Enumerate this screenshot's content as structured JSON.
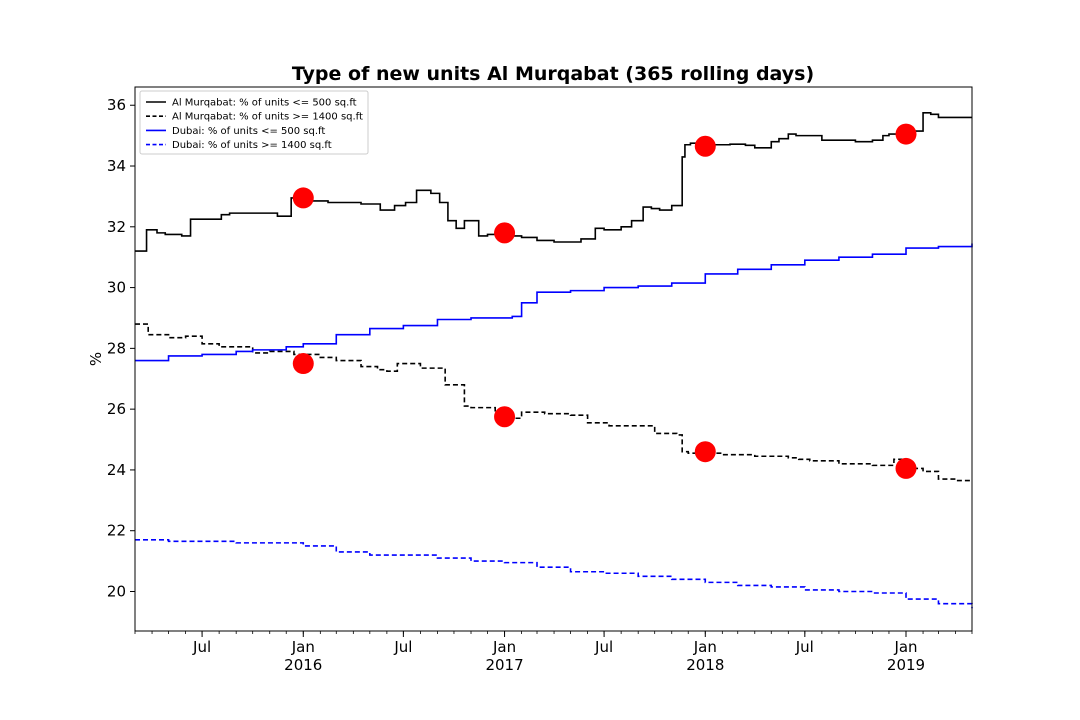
{
  "chart_data": {
    "type": "line",
    "title": "Type of new units Al Murqabat (365 rolling days)",
    "xlabel": "",
    "ylabel": "%",
    "xlim": [
      "2015-03-01",
      "2019-05-01"
    ],
    "ylim": [
      18.7,
      36.6
    ],
    "y_ticks": [
      20,
      22,
      24,
      26,
      28,
      30,
      32,
      34,
      36
    ],
    "x_ticks": [
      {
        "date": "2015-07-01",
        "label": "Jul",
        "year": ""
      },
      {
        "date": "2016-01-01",
        "label": "Jan",
        "year": "2016"
      },
      {
        "date": "2016-07-01",
        "label": "Jul",
        "year": ""
      },
      {
        "date": "2017-01-01",
        "label": "Jan",
        "year": "2017"
      },
      {
        "date": "2017-07-01",
        "label": "Jul",
        "year": ""
      },
      {
        "date": "2018-01-01",
        "label": "Jan",
        "year": "2018"
      },
      {
        "date": "2018-07-01",
        "label": "Jul",
        "year": ""
      },
      {
        "date": "2019-01-01",
        "label": "Jan",
        "year": "2019"
      }
    ],
    "legend_position": "top-left",
    "grid": false,
    "series": [
      {
        "name": "Al Murqabat: % of units <= 500 sq.ft",
        "color": "#000000",
        "style": "solid",
        "x": [
          "2015-03-01",
          "2015-03-20",
          "2015-03-22",
          "2015-04-10",
          "2015-04-25",
          "2015-05-25",
          "2015-06-10",
          "2015-07-15",
          "2015-08-05",
          "2015-08-20",
          "2015-10-01",
          "2015-11-15",
          "2015-12-01",
          "2015-12-10",
          "2015-12-25",
          "2016-01-15",
          "2016-02-15",
          "2016-03-15",
          "2016-04-15",
          "2016-05-15",
          "2016-05-20",
          "2016-06-15",
          "2016-07-05",
          "2016-07-25",
          "2016-08-20",
          "2016-09-05",
          "2016-09-20",
          "2016-10-05",
          "2016-10-20",
          "2016-11-01",
          "2016-11-15",
          "2016-12-01",
          "2016-12-15",
          "2017-01-01",
          "2017-02-01",
          "2017-03-01",
          "2017-04-01",
          "2017-04-20",
          "2017-05-20",
          "2017-06-15",
          "2017-07-01",
          "2017-08-01",
          "2017-08-20",
          "2017-09-10",
          "2017-09-25",
          "2017-10-10",
          "2017-11-01",
          "2017-11-20",
          "2017-11-25",
          "2017-12-05",
          "2017-12-20",
          "2018-01-01",
          "2018-02-15",
          "2018-03-15",
          "2018-04-01",
          "2018-05-01",
          "2018-05-15",
          "2018-06-01",
          "2018-06-15",
          "2018-07-01",
          "2018-08-01",
          "2018-09-15",
          "2018-10-01",
          "2018-11-01",
          "2018-11-20",
          "2018-12-01",
          "2018-12-15",
          "2019-01-01",
          "2019-01-15",
          "2019-02-01",
          "2019-02-15",
          "2019-03-01",
          "2019-04-01",
          "2019-05-01"
        ],
        "y": [
          31.2,
          31.2,
          31.9,
          31.8,
          31.75,
          31.7,
          32.25,
          32.25,
          32.4,
          32.45,
          32.45,
          32.35,
          32.35,
          32.95,
          32.9,
          32.85,
          32.8,
          32.8,
          32.75,
          32.75,
          32.55,
          32.7,
          32.8,
          33.2,
          33.1,
          32.8,
          32.2,
          31.95,
          32.2,
          32.2,
          31.7,
          31.75,
          31.8,
          31.7,
          31.65,
          31.55,
          31.5,
          31.5,
          31.6,
          31.95,
          31.9,
          32.0,
          32.2,
          32.65,
          32.6,
          32.55,
          32.7,
          34.3,
          34.7,
          34.75,
          34.7,
          34.7,
          34.72,
          34.68,
          34.6,
          34.8,
          34.9,
          35.05,
          35.0,
          35.0,
          34.85,
          34.85,
          34.8,
          34.85,
          35.0,
          35.05,
          35.05,
          35.1,
          35.15,
          35.75,
          35.7,
          35.6,
          35.6,
          35.6
        ]
      },
      {
        "name": "Al Murqabat: % of units >= 1400 sq.ft",
        "color": "#000000",
        "style": "dashed",
        "x": [
          "2015-03-01",
          "2015-03-20",
          "2015-03-25",
          "2015-05-01",
          "2015-06-01",
          "2015-07-01",
          "2015-08-01",
          "2015-10-01",
          "2015-11-01",
          "2015-12-15",
          "2016-02-01",
          "2016-03-01",
          "2016-04-15",
          "2016-05-15",
          "2016-06-01",
          "2016-06-20",
          "2016-08-01",
          "2016-09-15",
          "2016-10-20",
          "2016-11-01",
          "2016-12-15",
          "2017-01-01",
          "2017-02-01",
          "2017-03-15",
          "2017-05-01",
          "2017-06-01",
          "2017-07-10",
          "2017-08-20",
          "2017-10-01",
          "2017-11-10",
          "2017-11-20",
          "2017-12-01",
          "2018-01-01",
          "2018-02-01",
          "2018-04-01",
          "2018-05-01",
          "2018-06-01",
          "2018-06-20",
          "2018-07-10",
          "2018-09-01",
          "2018-11-01",
          "2018-11-20",
          "2018-12-10",
          "2019-01-01",
          "2019-02-01",
          "2019-03-01",
          "2019-04-01",
          "2019-05-01"
        ],
        "y": [
          28.8,
          28.8,
          28.45,
          28.35,
          28.4,
          28.15,
          28.05,
          27.85,
          27.9,
          27.8,
          27.7,
          27.6,
          27.4,
          27.3,
          27.25,
          27.5,
          27.35,
          26.8,
          26.1,
          26.05,
          25.8,
          25.7,
          25.9,
          25.85,
          25.8,
          25.55,
          25.45,
          25.45,
          25.2,
          25.15,
          24.6,
          24.55,
          24.55,
          24.5,
          24.45,
          24.45,
          24.4,
          24.35,
          24.3,
          24.2,
          24.15,
          24.15,
          24.35,
          24.05,
          23.95,
          23.7,
          23.65,
          23.65
        ]
      },
      {
        "name": "Dubai: % of units <= 500 sq.ft",
        "color": "#0000ff",
        "style": "solid",
        "x": [
          "2015-03-01",
          "2015-05-01",
          "2015-07-01",
          "2015-09-01",
          "2015-10-01",
          "2015-12-01",
          "2016-01-01",
          "2016-03-01",
          "2016-05-01",
          "2016-07-01",
          "2016-09-01",
          "2016-11-01",
          "2017-01-01",
          "2017-01-15",
          "2017-02-01",
          "2017-03-01",
          "2017-04-01",
          "2017-05-01",
          "2017-07-01",
          "2017-09-01",
          "2017-11-01",
          "2018-01-01",
          "2018-03-01",
          "2018-05-01",
          "2018-07-01",
          "2018-09-01",
          "2018-11-01",
          "2019-01-01",
          "2019-03-01",
          "2019-05-01"
        ],
        "y": [
          27.6,
          27.75,
          27.8,
          27.9,
          27.95,
          28.05,
          28.15,
          28.45,
          28.65,
          28.75,
          28.95,
          29.0,
          29.0,
          29.05,
          29.5,
          29.85,
          29.85,
          29.9,
          30.0,
          30.05,
          30.15,
          30.45,
          30.6,
          30.75,
          30.9,
          31.0,
          31.1,
          31.3,
          31.35,
          31.45
        ]
      },
      {
        "name": "Dubai: % of units >= 1400 sq.ft",
        "color": "#0000ff",
        "style": "dashed",
        "x": [
          "2015-03-01",
          "2015-05-01",
          "2015-07-01",
          "2015-09-01",
          "2015-11-01",
          "2016-01-01",
          "2016-03-01",
          "2016-05-01",
          "2016-07-01",
          "2016-09-01",
          "2016-11-01",
          "2017-01-01",
          "2017-03-01",
          "2017-05-01",
          "2017-07-01",
          "2017-09-01",
          "2017-11-01",
          "2018-01-01",
          "2018-03-01",
          "2018-05-01",
          "2018-07-01",
          "2018-09-01",
          "2018-11-01",
          "2019-01-01",
          "2019-03-01",
          "2019-05-01"
        ],
        "y": [
          21.7,
          21.65,
          21.65,
          21.6,
          21.6,
          21.5,
          21.3,
          21.2,
          21.2,
          21.1,
          21.0,
          20.95,
          20.8,
          20.65,
          20.6,
          20.5,
          20.4,
          20.3,
          20.2,
          20.15,
          20.05,
          20.0,
          19.95,
          19.75,
          19.6,
          19.45
        ]
      }
    ],
    "markers": {
      "color": "#ff0000",
      "points": [
        {
          "x": "2016-01-01",
          "y": 32.95
        },
        {
          "x": "2017-01-01",
          "y": 31.8
        },
        {
          "x": "2018-01-01",
          "y": 34.65
        },
        {
          "x": "2019-01-01",
          "y": 35.05
        },
        {
          "x": "2016-01-01",
          "y": 27.5
        },
        {
          "x": "2017-01-01",
          "y": 25.75
        },
        {
          "x": "2018-01-01",
          "y": 24.6
        },
        {
          "x": "2019-01-01",
          "y": 24.05
        }
      ]
    }
  }
}
